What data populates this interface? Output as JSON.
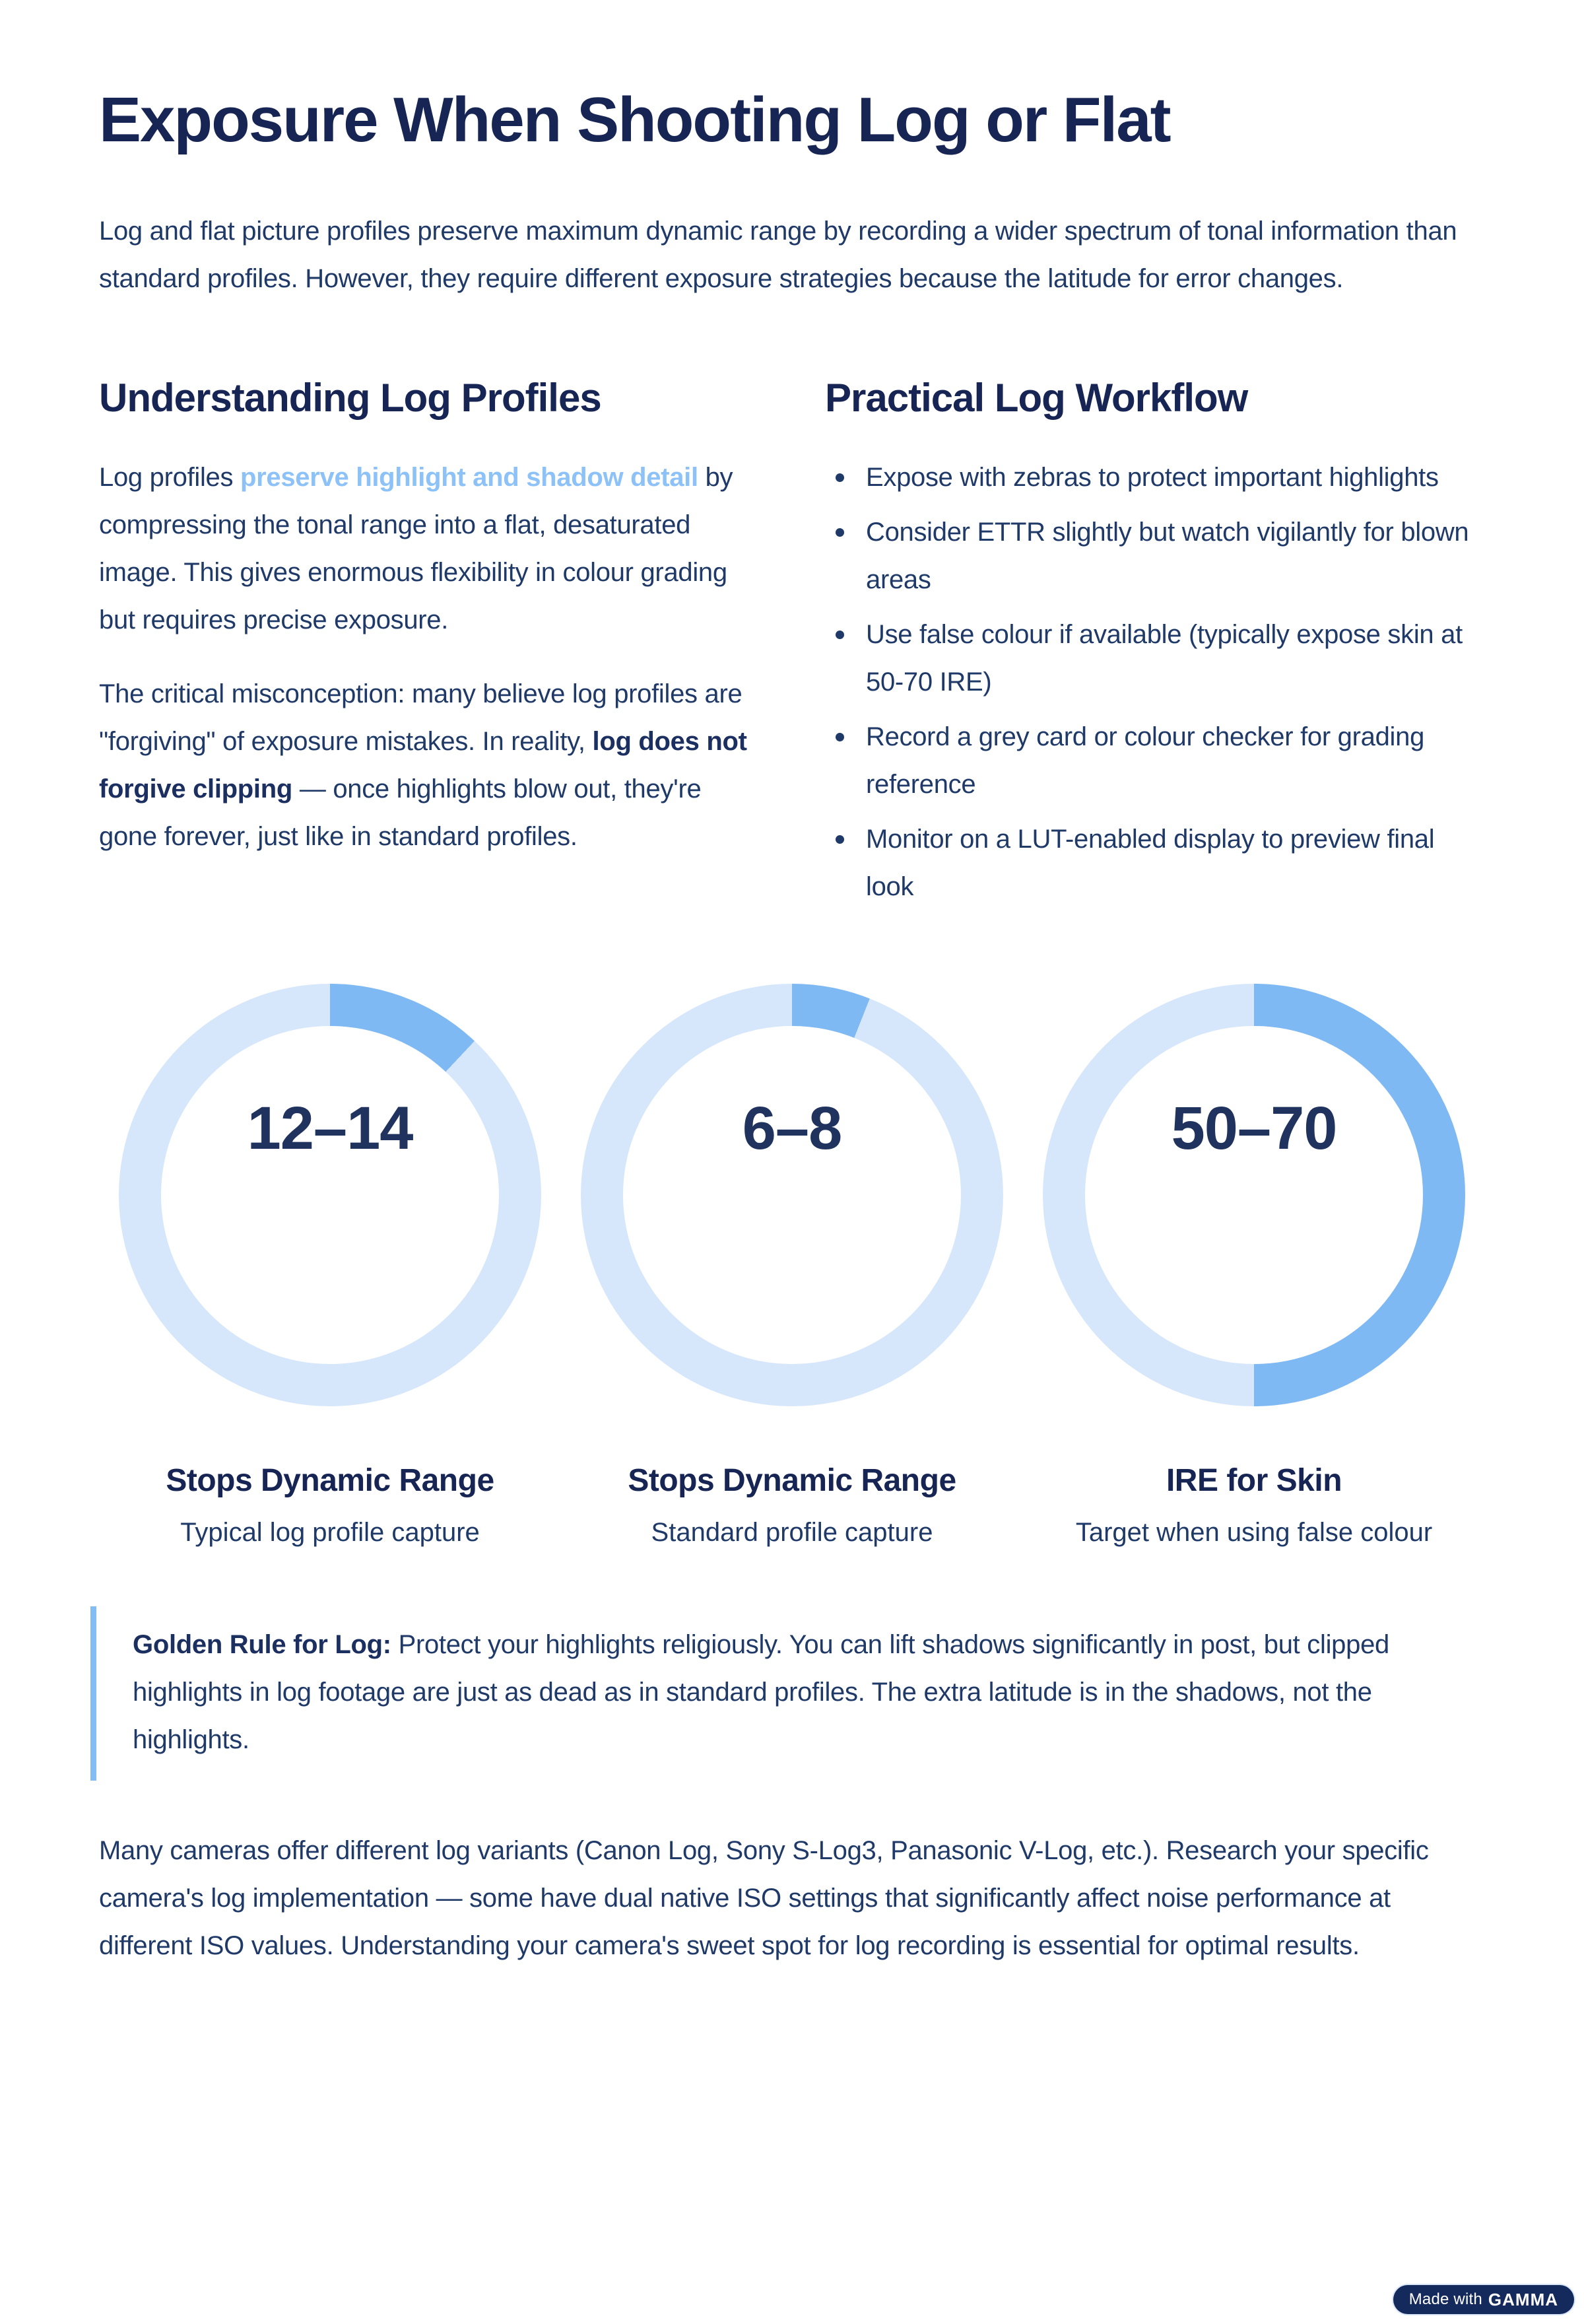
{
  "header": {
    "title": "Exposure When Shooting Log or Flat",
    "intro": "Log and flat picture profiles preserve maximum dynamic range by recording a wider spectrum of tonal information than standard profiles. However, they require different exposure strategies because the latitude for error changes."
  },
  "understanding": {
    "heading": "Understanding Log Profiles",
    "p1_before": "Log profiles ",
    "p1_link": "preserve highlight and shadow detail",
    "p1_after": " by compressing the tonal range into a flat, desaturated image. This gives enormous flexibility in colour grading but requires precise exposure.",
    "p2_before": "The critical misconception: many believe log profiles are \"forgiving\" of exposure mistakes. In reality, ",
    "p2_bold": "log does not forgive clipping",
    "p2_after": " — once highlights blow out, they're gone forever, just like in standard profiles."
  },
  "workflow": {
    "heading": "Practical Log Workflow",
    "bullets": [
      "Expose with zebras to protect important highlights",
      "Consider ETTR slightly but watch vigilantly for blown areas",
      "Use false colour if available (typically expose skin at 50-70 IRE)",
      "Record a grey card or colour checker for grading reference",
      "Monitor on a LUT-enabled display to preview final look"
    ]
  },
  "stats": {
    "fill_color": "#7FB9F3",
    "track_color": "#D6E7FB",
    "items": [
      {
        "value": "12–14",
        "percent": 12,
        "label": "Stops Dynamic Range",
        "description": "Typical log profile capture"
      },
      {
        "value": "6–8",
        "percent": 6,
        "label": "Stops Dynamic Range",
        "description": "Standard profile capture"
      },
      {
        "value": "50–70",
        "percent": 50,
        "label": "IRE for Skin",
        "description": "Target when using false colour"
      }
    ]
  },
  "chart_data": [
    {
      "type": "pie",
      "title": "Stops Dynamic Range — Typical log profile capture",
      "center_label": "12–14",
      "labels": [
        "filled",
        "remainder"
      ],
      "values": [
        12,
        88
      ],
      "colors": [
        "#7FB9F3",
        "#D6E7FB"
      ],
      "start_angle_deg": 0,
      "direction": "clockwise"
    },
    {
      "type": "pie",
      "title": "Stops Dynamic Range — Standard profile capture",
      "center_label": "6–8",
      "labels": [
        "filled",
        "remainder"
      ],
      "values": [
        6,
        94
      ],
      "colors": [
        "#7FB9F3",
        "#D6E7FB"
      ],
      "start_angle_deg": 0,
      "direction": "clockwise"
    },
    {
      "type": "pie",
      "title": "IRE for Skin — Target when using false colour",
      "center_label": "50–70",
      "labels": [
        "filled",
        "remainder"
      ],
      "values": [
        50,
        50
      ],
      "colors": [
        "#7FB9F3",
        "#D6E7FB"
      ],
      "start_angle_deg": 0,
      "direction": "clockwise"
    }
  ],
  "callout": {
    "bold": "Golden Rule for Log:",
    "text": " Protect your highlights religiously. You can lift shadows significantly in post, but clipped highlights in log footage are just as dead as in standard profiles. The extra latitude is in the shadows, not the highlights."
  },
  "outro": "Many cameras offer different log variants (Canon Log, Sony S-Log3, Panasonic V-Log, etc.). Research your specific camera's log implementation — some have dual native ISO settings that significantly affect noise performance at different ISO values. Understanding your camera's sweet spot for log recording is essential for optimal results.",
  "badge": {
    "prefix": "Made with",
    "brand": "GAMMA"
  },
  "colors": {
    "heading_navy": "#172554",
    "body_navy": "#1f3a68",
    "link_light_blue": "#8CC2F7",
    "donut_fill": "#7FB9F3",
    "donut_track": "#D6E7FB",
    "callout_border": "#84BDF5",
    "badge_background": "#152A5C",
    "page_background": "#FFFFFF"
  }
}
